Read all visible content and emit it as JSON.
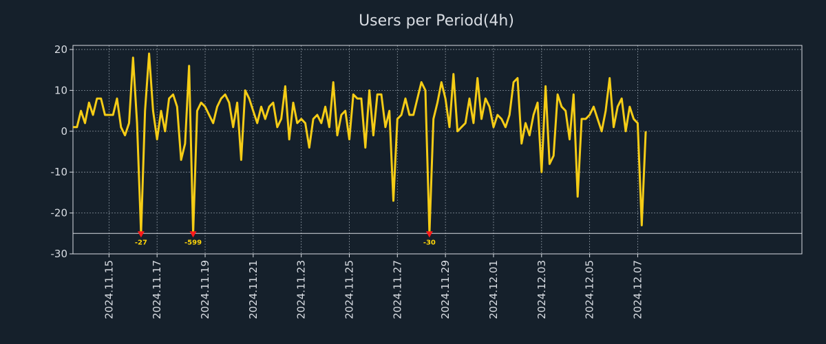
{
  "chart_data": {
    "type": "line",
    "title": "Users per Period(4h)",
    "xlabel": "",
    "ylabel": "",
    "ylim": [
      -30,
      21
    ],
    "xlim": [
      0,
      182
    ],
    "grid": true,
    "colors": {
      "background": "#15202b",
      "line": "#f5cc16",
      "text": "#d9dde3",
      "axes": "#d9dde3",
      "grid": "#8a949e",
      "marker": "#ff1a1a",
      "marker_label": "#ffd60a",
      "floor_line": "#d9dde3"
    },
    "yticks": [
      {
        "value": 20,
        "label": "20"
      },
      {
        "value": 10,
        "label": "10"
      },
      {
        "value": 0,
        "label": "0"
      },
      {
        "value": -10,
        "label": "-10"
      },
      {
        "value": -20,
        "label": "-20"
      },
      {
        "value": -30,
        "label": "-30"
      }
    ],
    "xticks": [
      {
        "index": 9,
        "label": "2024.11.15"
      },
      {
        "index": 21,
        "label": "2024.11.17"
      },
      {
        "index": 33,
        "label": "2024.11.19"
      },
      {
        "index": 45,
        "label": "2024.11.21"
      },
      {
        "index": 57,
        "label": "2024.11.23"
      },
      {
        "index": 69,
        "label": "2024.11.25"
      },
      {
        "index": 81,
        "label": "2024.11.27"
      },
      {
        "index": 93,
        "label": "2024.11.29"
      },
      {
        "index": 105,
        "label": "2024.12.01"
      },
      {
        "index": 117,
        "label": "2024.12.03"
      },
      {
        "index": 129,
        "label": "2024.12.05"
      },
      {
        "index": 141,
        "label": "2024.12.07"
      }
    ],
    "floor_value": -25,
    "series": [
      {
        "name": "Users per Period(4h)",
        "values": [
          1,
          1,
          5,
          2,
          7,
          4,
          8,
          8,
          4,
          4,
          4,
          8,
          1,
          -1,
          2,
          18,
          2,
          -25,
          5,
          19,
          5,
          -2,
          5,
          0,
          8,
          9,
          6,
          -7,
          -3,
          16,
          -25,
          5,
          7,
          6,
          4,
          2,
          6,
          8,
          9,
          7,
          1,
          7,
          -7,
          10,
          8,
          5,
          2,
          6,
          3,
          6,
          7,
          1,
          3,
          11,
          -2,
          7,
          2,
          3,
          2,
          -4,
          3,
          4,
          2,
          6,
          1,
          12,
          -1,
          4,
          5,
          -2,
          9,
          8,
          8,
          -4,
          10,
          -1,
          9,
          9,
          1,
          5,
          -17,
          3,
          4,
          8,
          4,
          4,
          8,
          12,
          10,
          -25,
          3,
          7,
          12,
          8,
          1,
          14,
          0,
          1,
          2,
          8,
          2,
          13,
          3,
          8,
          6,
          1,
          4,
          3,
          1,
          4,
          12,
          13,
          -3,
          2,
          -1,
          4,
          7,
          -10,
          11,
          -8,
          -6,
          9,
          6,
          5,
          -2,
          9,
          -16,
          3,
          3,
          4,
          6,
          3,
          0,
          5,
          13,
          1,
          6,
          8,
          0,
          6,
          3,
          2,
          -23,
          0
        ]
      }
    ],
    "markers": [
      {
        "index": 17,
        "value": -25,
        "label": "-27"
      },
      {
        "index": 30,
        "value": -25,
        "label": "-599"
      },
      {
        "index": 89,
        "value": -25,
        "label": "-30"
      }
    ]
  }
}
